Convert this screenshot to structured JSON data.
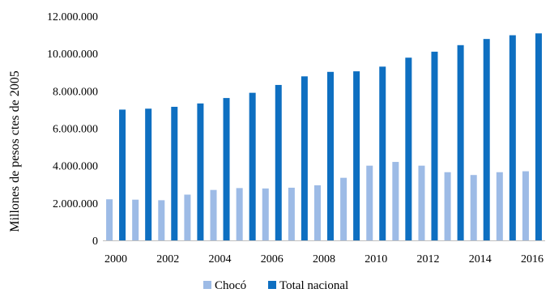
{
  "chart_data": {
    "type": "bar",
    "title": "",
    "xlabel": "",
    "ylabel": "Millones de pesos ctes de 2005",
    "ylim": [
      0,
      12000000
    ],
    "y_ticks": [
      0,
      2000000,
      4000000,
      6000000,
      8000000,
      10000000,
      12000000
    ],
    "y_tick_labels": [
      "0",
      "2.000.000",
      "4.000.000",
      "6.000.000",
      "8.000.000",
      "10.000.000",
      "12.000.000"
    ],
    "categories": [
      "2000",
      "2001",
      "2002",
      "2003",
      "2004",
      "2005",
      "2006",
      "2007",
      "2008",
      "2009",
      "2010",
      "2011",
      "2012",
      "2013",
      "2014",
      "2015",
      "2016"
    ],
    "x_tick_labels": [
      "2000",
      "",
      "2002",
      "",
      "2004",
      "",
      "2006",
      "",
      "2008",
      "",
      "2010",
      "",
      "2012",
      "",
      "2014",
      "",
      "2016"
    ],
    "grid": false,
    "legend_position": "bottom",
    "series": [
      {
        "name": "Chocó",
        "color": "#9dbbe6",
        "values": [
          2200000,
          2180000,
          2150000,
          2450000,
          2700000,
          2800000,
          2780000,
          2820000,
          2950000,
          3350000,
          4000000,
          4200000,
          4000000,
          3650000,
          3500000,
          3650000,
          3700000
        ]
      },
      {
        "name": "Total nacional",
        "color": "#0e6fc1",
        "values": [
          7000000,
          7050000,
          7150000,
          7330000,
          7620000,
          7900000,
          8320000,
          8780000,
          9020000,
          9050000,
          9300000,
          9780000,
          10100000,
          10450000,
          10780000,
          10980000,
          11080000
        ]
      }
    ]
  }
}
